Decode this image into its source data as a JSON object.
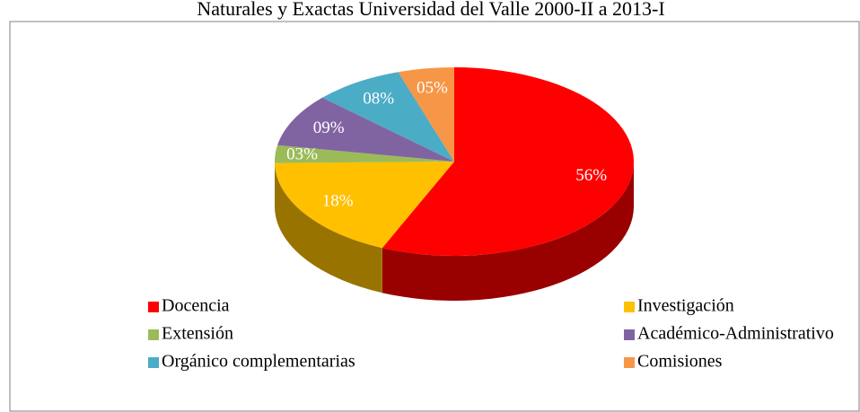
{
  "chart_data": {
    "type": "pie",
    "title": "Naturales y Exactas Universidad del Valle 2000-II a 2013-I",
    "categories": [
      "Docencia",
      "Investigación",
      "Extensión",
      "Académico-Administrativo",
      "Orgánico complementarias",
      "Comisiones"
    ],
    "values": [
      56,
      18,
      3,
      9,
      8,
      5
    ],
    "value_labels": [
      "56%",
      "18%",
      "03%",
      "09%",
      "08%",
      "05%"
    ],
    "colors": [
      "#ff0000",
      "#ffc000",
      "#9bbb59",
      "#8064a2",
      "#4bacc6",
      "#f79646"
    ],
    "legend": "bottom"
  }
}
